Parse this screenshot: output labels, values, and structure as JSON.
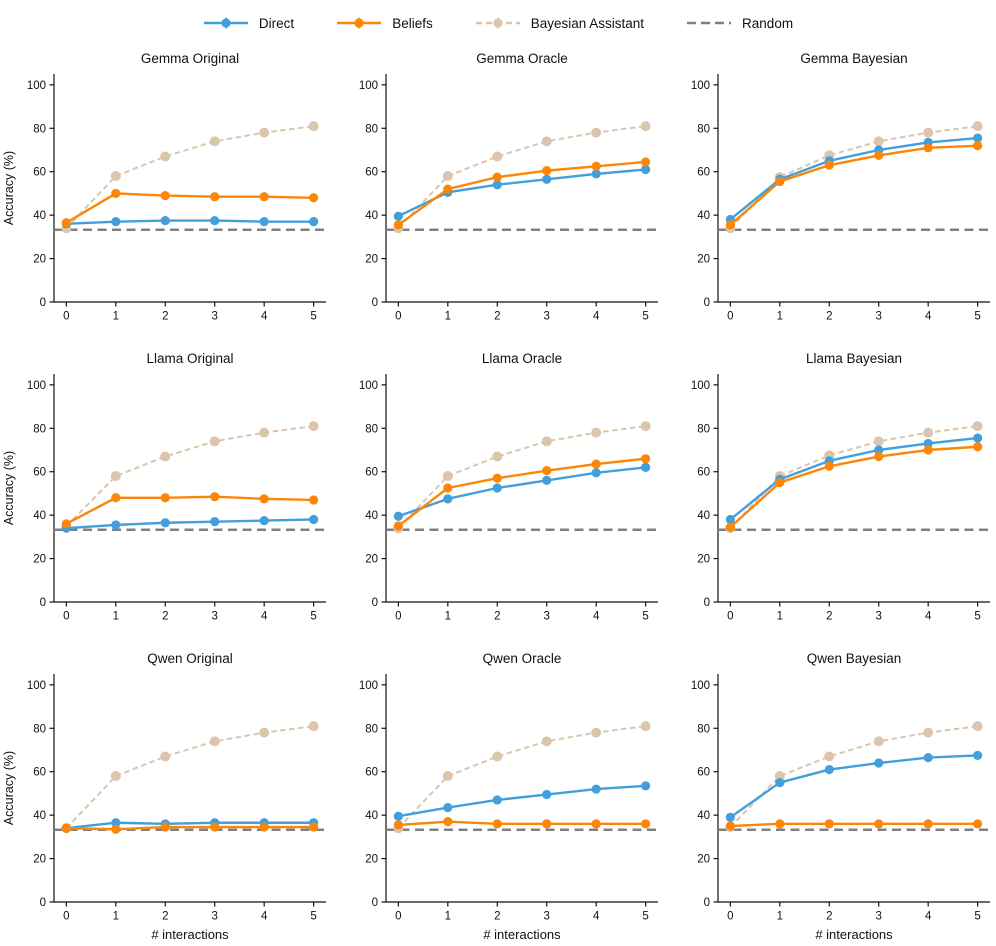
{
  "chart_data": {
    "type": "line",
    "x": [
      0,
      1,
      2,
      3,
      4,
      5
    ],
    "xlabel": "# interactions",
    "ylabel": "Accuracy (%)",
    "yticks": [
      0,
      20,
      40,
      60,
      80,
      100
    ],
    "xticks": [
      0,
      1,
      2,
      3,
      4,
      5
    ],
    "ylim": [
      0,
      105
    ],
    "xlim": [
      -0.25,
      5.25
    ],
    "grid": false,
    "legend_position": "top-center",
    "legend": [
      {
        "label": "Direct",
        "color": "#429FDB",
        "dashed": false,
        "marker": true
      },
      {
        "label": "Beliefs",
        "color": "#FC8608",
        "dashed": false,
        "marker": true
      },
      {
        "label": "Bayesian Assistant",
        "color": "#DBC5AD",
        "dashed": true,
        "marker": true
      },
      {
        "label": "Random",
        "color": "#808080",
        "dashed": true,
        "marker": false
      }
    ],
    "random_baseline": 33.3,
    "subplots": [
      {
        "title": "Gemma Original",
        "series": [
          {
            "name": "Bayesian Assistant",
            "values": [
              34,
              58,
              67,
              74,
              78,
              81
            ]
          },
          {
            "name": "Direct",
            "values": [
              36,
              37,
              37.5,
              37.5,
              37,
              37
            ]
          },
          {
            "name": "Beliefs",
            "values": [
              36.5,
              50,
              49,
              48.5,
              48.5,
              48
            ]
          }
        ]
      },
      {
        "title": "Gemma Oracle",
        "series": [
          {
            "name": "Bayesian Assistant",
            "values": [
              34,
              58,
              67,
              74,
              78,
              81
            ]
          },
          {
            "name": "Direct",
            "values": [
              39.5,
              50.5,
              54,
              56.5,
              59,
              61
            ]
          },
          {
            "name": "Beliefs",
            "values": [
              35.5,
              52,
              57.5,
              60.5,
              62.5,
              64.5
            ]
          }
        ]
      },
      {
        "title": "Gemma Bayesian",
        "series": [
          {
            "name": "Bayesian Assistant",
            "values": [
              34,
              57.5,
              67.5,
              74,
              78,
              81
            ]
          },
          {
            "name": "Direct",
            "values": [
              38,
              56.5,
              65,
              70,
              73.5,
              75.5
            ]
          },
          {
            "name": "Beliefs",
            "values": [
              35.5,
              55.5,
              63,
              67.5,
              71,
              72
            ]
          }
        ]
      },
      {
        "title": "Llama Original",
        "series": [
          {
            "name": "Bayesian Assistant",
            "values": [
              35,
              58,
              67,
              74,
              78,
              81
            ]
          },
          {
            "name": "Direct",
            "values": [
              34,
              35.5,
              36.5,
              37,
              37.5,
              38
            ]
          },
          {
            "name": "Beliefs",
            "values": [
              36,
              48,
              48,
              48.5,
              47.5,
              47
            ]
          }
        ]
      },
      {
        "title": "Llama Oracle",
        "series": [
          {
            "name": "Bayesian Assistant",
            "values": [
              34,
              58,
              67,
              74,
              78,
              81
            ]
          },
          {
            "name": "Direct",
            "values": [
              39.5,
              47.5,
              52.5,
              56,
              59.5,
              62
            ]
          },
          {
            "name": "Beliefs",
            "values": [
              35,
              52.5,
              57,
              60.5,
              63.5,
              66
            ]
          }
        ]
      },
      {
        "title": "Llama Bayesian",
        "series": [
          {
            "name": "Bayesian Assistant",
            "values": [
              34,
              58,
              67.5,
              74,
              78,
              81
            ]
          },
          {
            "name": "Direct",
            "values": [
              38,
              56.5,
              65,
              70,
              73,
              75.5
            ]
          },
          {
            "name": "Beliefs",
            "values": [
              34.5,
              55,
              62.5,
              67,
              70,
              71.5
            ]
          }
        ]
      },
      {
        "title": "Qwen Original",
        "series": [
          {
            "name": "Bayesian Assistant",
            "values": [
              34,
              58,
              67,
              74,
              78,
              81
            ]
          },
          {
            "name": "Direct",
            "values": [
              34,
              36.5,
              36,
              36.5,
              36.5,
              36.5
            ]
          },
          {
            "name": "Beliefs",
            "values": [
              34,
              33.5,
              34.5,
              34.5,
              34.5,
              34.5
            ]
          }
        ]
      },
      {
        "title": "Qwen Oracle",
        "series": [
          {
            "name": "Bayesian Assistant",
            "values": [
              34,
              58,
              67,
              74,
              78,
              81
            ]
          },
          {
            "name": "Direct",
            "values": [
              39.5,
              43.5,
              47,
              49.5,
              52,
              53.5
            ]
          },
          {
            "name": "Beliefs",
            "values": [
              35.5,
              37,
              36,
              36,
              36,
              36
            ]
          }
        ]
      },
      {
        "title": "Qwen Bayesian",
        "series": [
          {
            "name": "Bayesian Assistant",
            "values": [
              34.5,
              58,
              67,
              74,
              78,
              81
            ]
          },
          {
            "name": "Direct",
            "values": [
              39,
              55,
              61,
              64,
              66.5,
              67.5
            ]
          },
          {
            "name": "Beliefs",
            "values": [
              35,
              36,
              36,
              36,
              36,
              36
            ]
          }
        ]
      }
    ]
  }
}
